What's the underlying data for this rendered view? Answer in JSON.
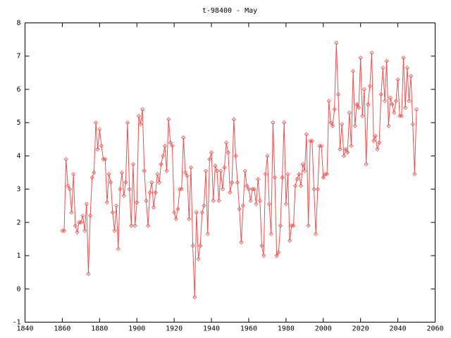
{
  "chart_data": {
    "type": "line",
    "title": "t-98400 - May",
    "x": [
      1860,
      1861,
      1862,
      1863,
      1864,
      1865,
      1866,
      1867,
      1868,
      1869,
      1870,
      1871,
      1872,
      1873,
      1874,
      1875,
      1876,
      1877,
      1878,
      1879,
      1880,
      1881,
      1882,
      1883,
      1884,
      1885,
      1886,
      1887,
      1888,
      1889,
      1890,
      1891,
      1892,
      1893,
      1894,
      1895,
      1896,
      1897,
      1898,
      1899,
      1900,
      1901,
      1902,
      1903,
      1904,
      1905,
      1906,
      1907,
      1908,
      1909,
      1910,
      1911,
      1912,
      1913,
      1914,
      1915,
      1916,
      1917,
      1918,
      1919,
      1920,
      1921,
      1922,
      1923,
      1924,
      1925,
      1926,
      1927,
      1928,
      1929,
      1930,
      1931,
      1932,
      1933,
      1934,
      1935,
      1936,
      1937,
      1938,
      1939,
      1940,
      1941,
      1942,
      1943,
      1944,
      1945,
      1946,
      1947,
      1948,
      1949,
      1950,
      1951,
      1952,
      1953,
      1954,
      1955,
      1956,
      1957,
      1958,
      1959,
      1960,
      1961,
      1962,
      1963,
      1964,
      1965,
      1966,
      1967,
      1968,
      1969,
      1970,
      1971,
      1972,
      1973,
      1974,
      1975,
      1976,
      1977,
      1978,
      1979,
      1980,
      1981,
      1982,
      1983,
      1984,
      1985,
      1986,
      1987,
      1988,
      1989,
      1990,
      1991,
      1992,
      1993,
      1994,
      1995,
      1996,
      1997,
      1998,
      1999,
      2000,
      2001,
      2002,
      2003,
      2004,
      2005,
      2006,
      2007,
      2008,
      2009,
      2010,
      2011,
      2012,
      2013,
      2014,
      2015,
      2016,
      2017,
      2018,
      2019,
      2020,
      2021,
      2022,
      2023,
      2024,
      2025,
      2026,
      2027,
      2028,
      2029,
      2030,
      2031,
      2032,
      2033,
      2034,
      2035,
      2036,
      2037,
      2038,
      2039,
      2040,
      2041,
      2042,
      2043,
      2044,
      2045,
      2046,
      2047,
      2048,
      2049,
      2050
    ],
    "series": [
      {
        "color": "#f05050",
        "values": [
          1.75,
          1.75,
          3.9,
          3.1,
          3.0,
          2.3,
          3.45,
          1.9,
          1.7,
          2.0,
          2.0,
          2.2,
          1.75,
          2.55,
          0.45,
          2.2,
          3.35,
          3.5,
          5.0,
          4.2,
          4.8,
          4.3,
          3.9,
          3.9,
          2.6,
          3.45,
          3.2,
          2.3,
          1.75,
          2.5,
          1.2,
          3.0,
          3.5,
          2.8,
          3.2,
          5.0,
          3.0,
          1.9,
          3.75,
          1.9,
          2.6,
          5.2,
          4.95,
          5.4,
          3.55,
          2.65,
          1.9,
          2.9,
          3.2,
          2.45,
          2.9,
          3.45,
          3.2,
          3.75,
          4.0,
          4.3,
          3.55,
          5.1,
          4.4,
          4.3,
          2.3,
          2.1,
          2.4,
          3.0,
          3.0,
          4.55,
          3.5,
          3.4,
          2.1,
          3.65,
          1.3,
          -0.25,
          2.3,
          0.9,
          1.3,
          2.3,
          2.5,
          3.55,
          1.65,
          3.9,
          4.1,
          2.65,
          3.7,
          3.55,
          2.65,
          3.55,
          3.0,
          3.65,
          4.4,
          4.1,
          2.9,
          3.2,
          5.1,
          4.0,
          3.2,
          2.4,
          1.4,
          2.5,
          3.55,
          3.1,
          3.0,
          2.65,
          3.0,
          3.0,
          2.55,
          3.3,
          2.65,
          1.3,
          1.0,
          3.45,
          4.0,
          2.55,
          1.65,
          5.0,
          3.35,
          1.0,
          1.1,
          1.9,
          3.35,
          5.0,
          2.55,
          3.45,
          1.45,
          1.9,
          1.9,
          3.1,
          3.3,
          3.45,
          3.1,
          3.75,
          3.55,
          4.65,
          1.9,
          4.45,
          4.45,
          3.0,
          1.65,
          3.0,
          4.3,
          4.3,
          3.35,
          3.45,
          3.45,
          5.65,
          5.0,
          4.9,
          5.4,
          7.4,
          5.85,
          4.2,
          4.95,
          4.0,
          4.2,
          4.1,
          5.3,
          4.3,
          6.55,
          4.9,
          5.55,
          5.45,
          6.95,
          5.2,
          6.0,
          3.75,
          5.55,
          6.1,
          7.1,
          4.45,
          4.6,
          4.2,
          4.4,
          5.85,
          6.65,
          5.65,
          6.85,
          4.9,
          5.75,
          5.55,
          5.3,
          5.65,
          6.3,
          5.2,
          5.2,
          6.95,
          5.45,
          6.65,
          5.65,
          6.4,
          4.95,
          3.45,
          5.4
        ]
      }
    ],
    "xlim": [
      1840,
      2060
    ],
    "xticks": [
      1840,
      1860,
      1880,
      1900,
      1920,
      1940,
      1960,
      1980,
      2000,
      2020,
      2040,
      2060
    ],
    "ylim": [
      -1,
      8
    ],
    "yticks": [
      -1,
      0,
      1,
      2,
      3,
      4,
      5,
      6,
      7,
      8
    ]
  }
}
